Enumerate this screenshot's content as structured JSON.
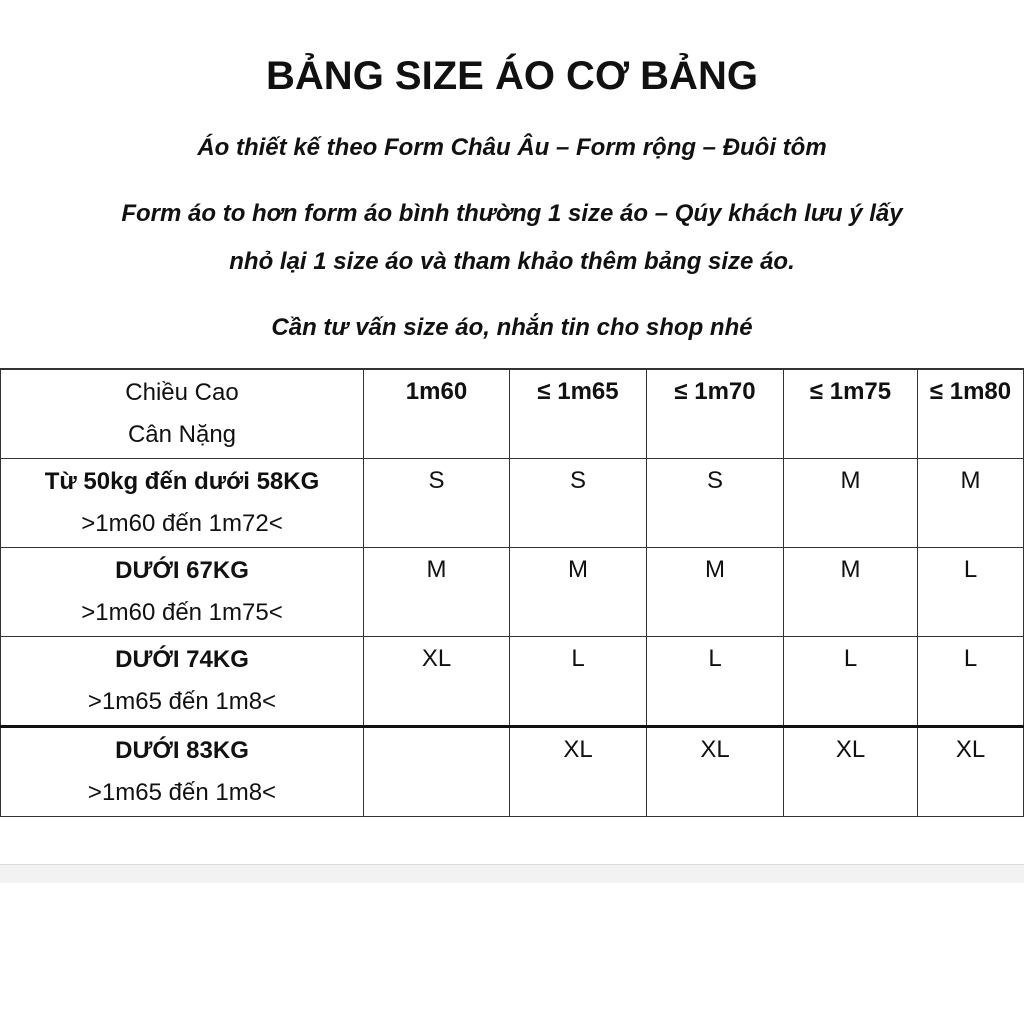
{
  "title": "BẢNG SIZE ÁO CƠ BẢNG",
  "subtitle": "Áo thiết kế theo Form Châu Âu – Form rộng – Đuôi tôm",
  "note_line1": "Form áo to hơn form áo bình thường 1 size áo – Qúy khách lưu ý lấy",
  "note_line2": "nhỏ lại 1 size áo và tham khảo thêm bảng size áo.",
  "contact": "Cần tư vấn size áo, nhắn tin cho shop nhé",
  "table": {
    "corner_top": "Chiều Cao",
    "corner_bottom": "Cân Nặng",
    "heights": [
      "1m60",
      "≤ 1m65",
      "≤ 1m70",
      "≤ 1m75",
      "≤ 1m80"
    ],
    "rows": [
      {
        "weight": "Từ 50kg đến dưới 58KG",
        "range": ">1m60 đến 1m72<",
        "sizes": [
          "S",
          "S",
          "S",
          "M",
          "M"
        ]
      },
      {
        "weight": "DƯỚI 67KG",
        "range": ">1m60 đến 1m75<",
        "sizes": [
          "M",
          "M",
          "M",
          "M",
          "L"
        ]
      },
      {
        "weight": "DƯỚI 74KG",
        "range": ">1m65 đến 1m8<",
        "sizes": [
          "XL",
          "L",
          "L",
          "L",
          "L"
        ]
      },
      {
        "weight": "DƯỚI 83KG",
        "range": ">1m65 đến 1m8<",
        "sizes": [
          "",
          "XL",
          "XL",
          "XL",
          "XL"
        ]
      }
    ]
  }
}
